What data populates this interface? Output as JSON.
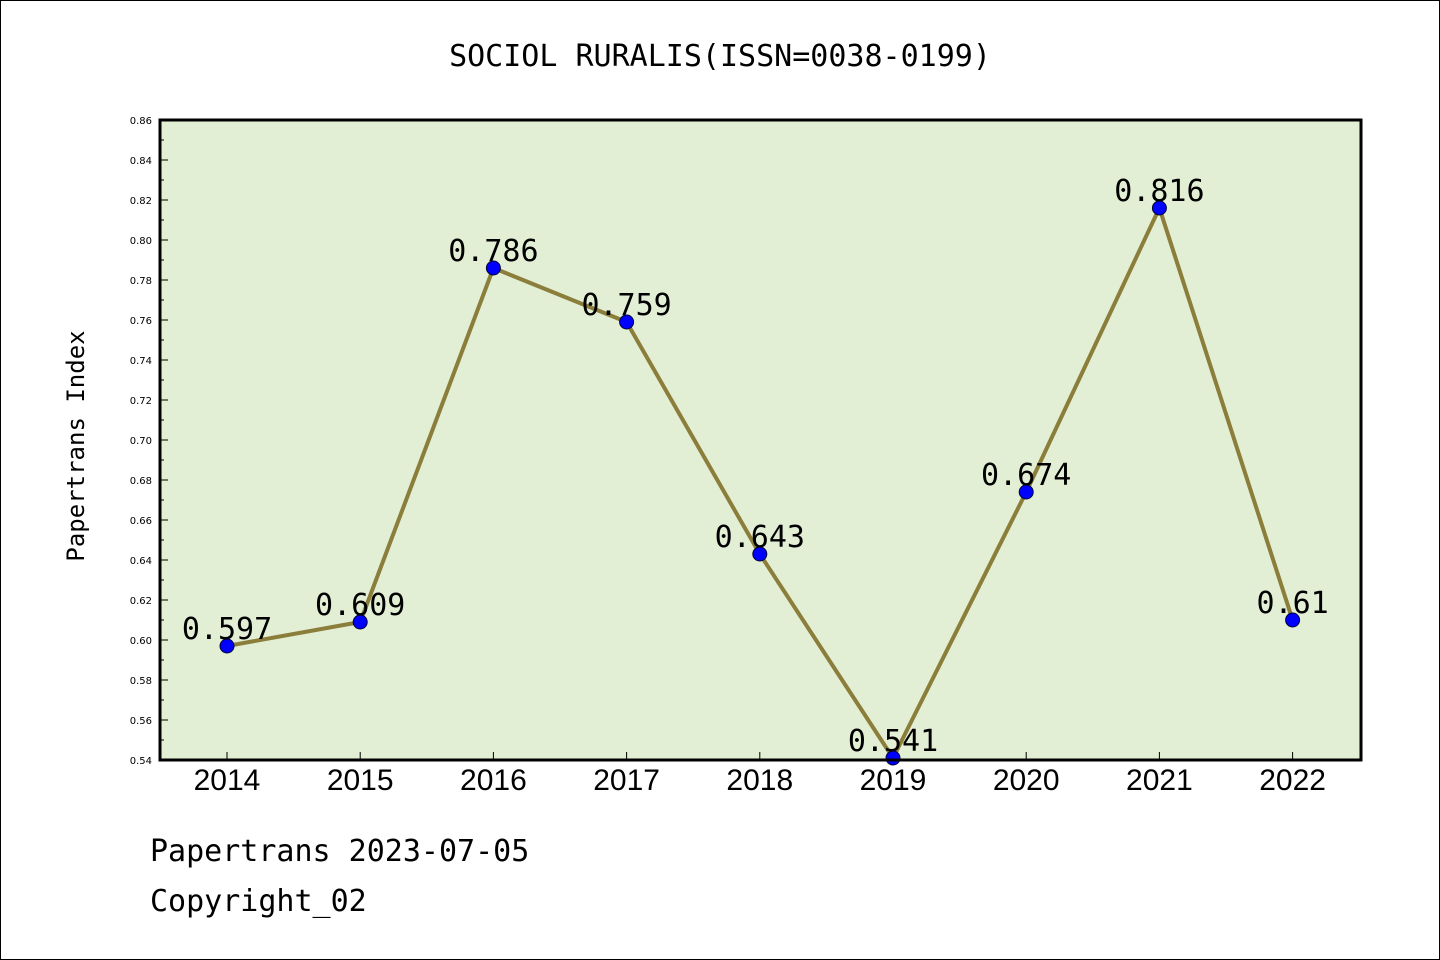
{
  "chart_data": {
    "type": "line",
    "title": "SOCIOL RURALIS(ISSN=0038-0199)",
    "xlabel": "",
    "ylabel": "Papertrans Index",
    "categories": [
      "2014",
      "2015",
      "2016",
      "2017",
      "2018",
      "2019",
      "2020",
      "2021",
      "2022"
    ],
    "series": [
      {
        "values": [
          0.597,
          0.609,
          0.786,
          0.759,
          0.643,
          0.541,
          0.674,
          0.816,
          0.61
        ],
        "labels": [
          "0.597",
          "0.609",
          "0.786",
          "0.759",
          "0.643",
          "0.541",
          "0.674",
          "0.816",
          "0.61"
        ]
      }
    ],
    "ylim": [
      0.54,
      0.86
    ],
    "yticks": [
      "0.54",
      "0.56",
      "0.58",
      "0.60",
      "0.62",
      "0.64",
      "0.66",
      "0.68",
      "0.70",
      "0.72",
      "0.74",
      "0.76",
      "0.78",
      "0.80",
      "0.82",
      "0.84",
      "0.86"
    ],
    "grid": false,
    "legend": "none",
    "colors": {
      "plot_background": "#e2efd4",
      "line": "#8b7d3a",
      "marker": "#0000ff"
    }
  },
  "footer": {
    "line1": "Papertrans 2023-07-05",
    "line2": "Copyright_02"
  }
}
